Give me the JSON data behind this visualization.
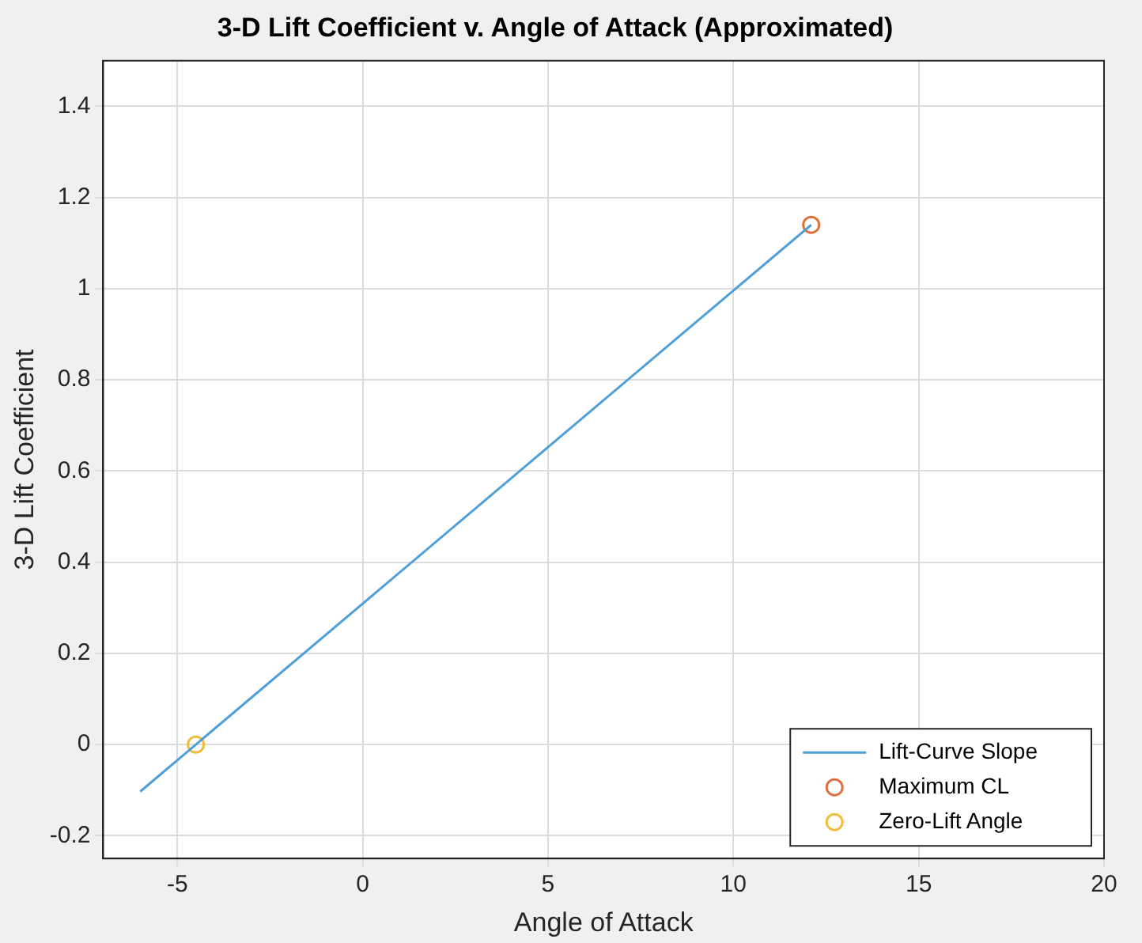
{
  "chart_data": {
    "type": "line",
    "title": "3-D Lift Coefficient v. Angle of Attack (Approximated)",
    "xlabel": "Angle of Attack",
    "ylabel": "3-D Lift Coefficient",
    "series": [
      {
        "name": "Lift-Curve Slope",
        "type": "line",
        "color": "#4d9fd8",
        "x": [
          -6,
          12.1
        ],
        "values": [
          -0.103,
          1.14
        ],
        "marker": "none"
      },
      {
        "name": "Maximum CL",
        "type": "scatter",
        "color": "#e0703f",
        "x": [
          12.1
        ],
        "values": [
          1.14
        ],
        "marker": "circle"
      },
      {
        "name": "Zero-Lift Angle",
        "type": "scatter",
        "color": "#f0be3a",
        "x": [
          -4.5
        ],
        "values": [
          0
        ],
        "marker": "circle"
      }
    ],
    "xlim": [
      -7,
      20
    ],
    "xticks": [
      -5,
      0,
      5,
      10,
      15,
      20
    ],
    "ylim": [
      -0.25,
      1.5
    ],
    "yticks": [
      -0.2,
      0,
      0.2,
      0.4,
      0.6,
      0.8,
      1,
      1.2,
      1.4
    ],
    "grid": true,
    "legend": "bottom right"
  }
}
